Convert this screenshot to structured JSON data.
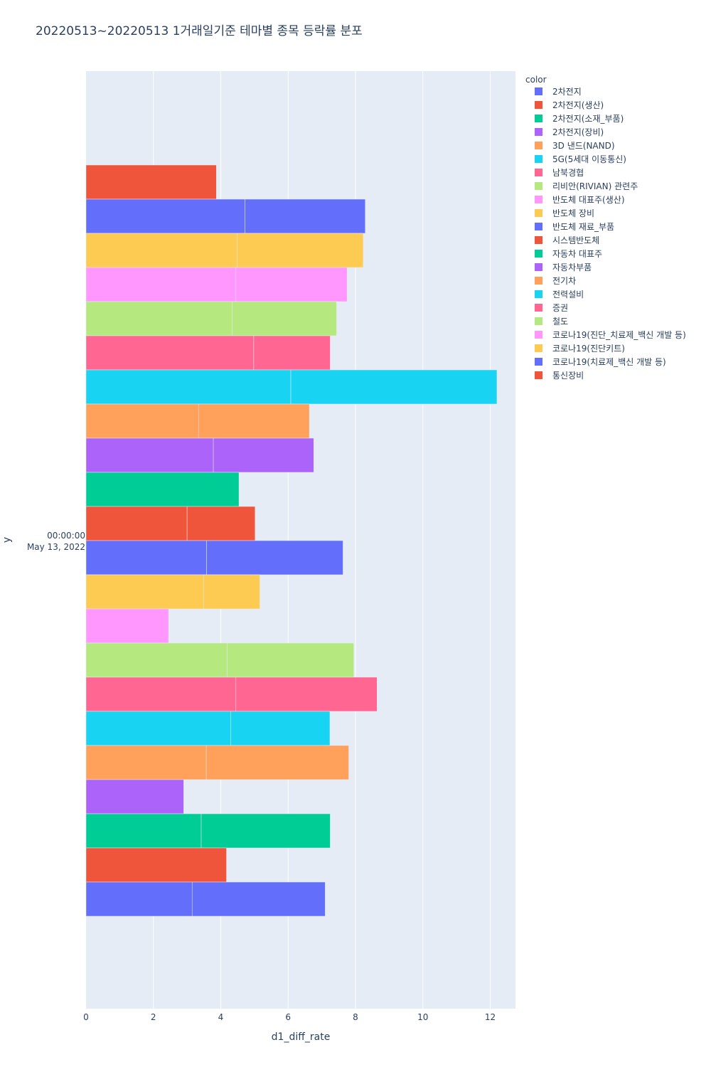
{
  "chart_data": {
    "type": "bar",
    "orientation": "horizontal",
    "barmode": "stack",
    "title": "20220513~20220513 1거래일기준 테마별 종목 등락률 분포",
    "xlabel": "d1_diff_rate",
    "ylabel": "y",
    "xlim": [
      0,
      12.75
    ],
    "x_ticks": [
      0,
      2,
      4,
      6,
      8,
      10,
      12
    ],
    "x_tick_labels": [
      "0",
      "2",
      "4",
      "6",
      "8",
      "10",
      "12"
    ],
    "y_tick_label_time": "00:00:00",
    "y_tick_label_date": "May 13, 2022",
    "grid": true,
    "legend_title": "color",
    "legend_position": "right",
    "series": [
      {
        "name": "2차전지",
        "color": "#636efa",
        "segments": [
          3.15,
          3.95
        ]
      },
      {
        "name": "2차전지(생산)",
        "color": "#EF553B",
        "segments": [
          4.17
        ]
      },
      {
        "name": "2차전지(소재_부품)",
        "color": "#00cc96",
        "segments": [
          3.42,
          3.83
        ]
      },
      {
        "name": "2차전지(장비)",
        "color": "#ab63fa",
        "segments": [
          2.9
        ]
      },
      {
        "name": "3D 낸드(NAND)",
        "color": "#FFA15A",
        "segments": [
          3.57,
          4.23
        ]
      },
      {
        "name": "5G(5세대 이동통신)",
        "color": "#19d3f3",
        "segments": [
          4.3,
          2.94
        ]
      },
      {
        "name": "남북경협",
        "color": "#FF6692",
        "segments": [
          4.45,
          4.19
        ]
      },
      {
        "name": "리비안(RIVIAN) 관련주",
        "color": "#B6E880",
        "segments": [
          4.19,
          3.76
        ]
      },
      {
        "name": "반도체 대표주(생산)",
        "color": "#FF97FF",
        "segments": [
          2.45
        ]
      },
      {
        "name": "반도체 장비",
        "color": "#FECB52",
        "segments": [
          3.49,
          1.67
        ]
      },
      {
        "name": "반도체 재료_부품",
        "color": "#636efa",
        "segments": [
          3.58,
          4.05
        ]
      },
      {
        "name": "시스템반도체",
        "color": "#EF553B",
        "segments": [
          3.0,
          2.02
        ]
      },
      {
        "name": "자동차 대표주",
        "color": "#00cc96",
        "segments": [
          4.54
        ]
      },
      {
        "name": "자동차부품",
        "color": "#ab63fa",
        "segments": [
          3.78,
          2.98
        ]
      },
      {
        "name": "전기차",
        "color": "#FFA15A",
        "segments": [
          3.34,
          3.29
        ]
      },
      {
        "name": "전력설비",
        "color": "#19d3f3",
        "segments": [
          6.08,
          6.12
        ]
      },
      {
        "name": "증권",
        "color": "#FF6692",
        "segments": [
          4.98,
          2.27
        ]
      },
      {
        "name": "철도",
        "color": "#B6E880",
        "segments": [
          4.34,
          3.1
        ]
      },
      {
        "name": "코로나19(진단_치료제_백신 개발 등)",
        "color": "#FF97FF",
        "segments": [
          4.45,
          3.3
        ]
      },
      {
        "name": "코로나19(진단키트)",
        "color": "#FECB52",
        "segments": [
          4.49,
          3.74
        ]
      },
      {
        "name": "코로나19(치료제_백신 개발 등)",
        "color": "#636efa",
        "segments": [
          4.72,
          3.57
        ]
      },
      {
        "name": "통신장비",
        "color": "#EF553B",
        "segments": [
          3.87
        ]
      }
    ]
  }
}
